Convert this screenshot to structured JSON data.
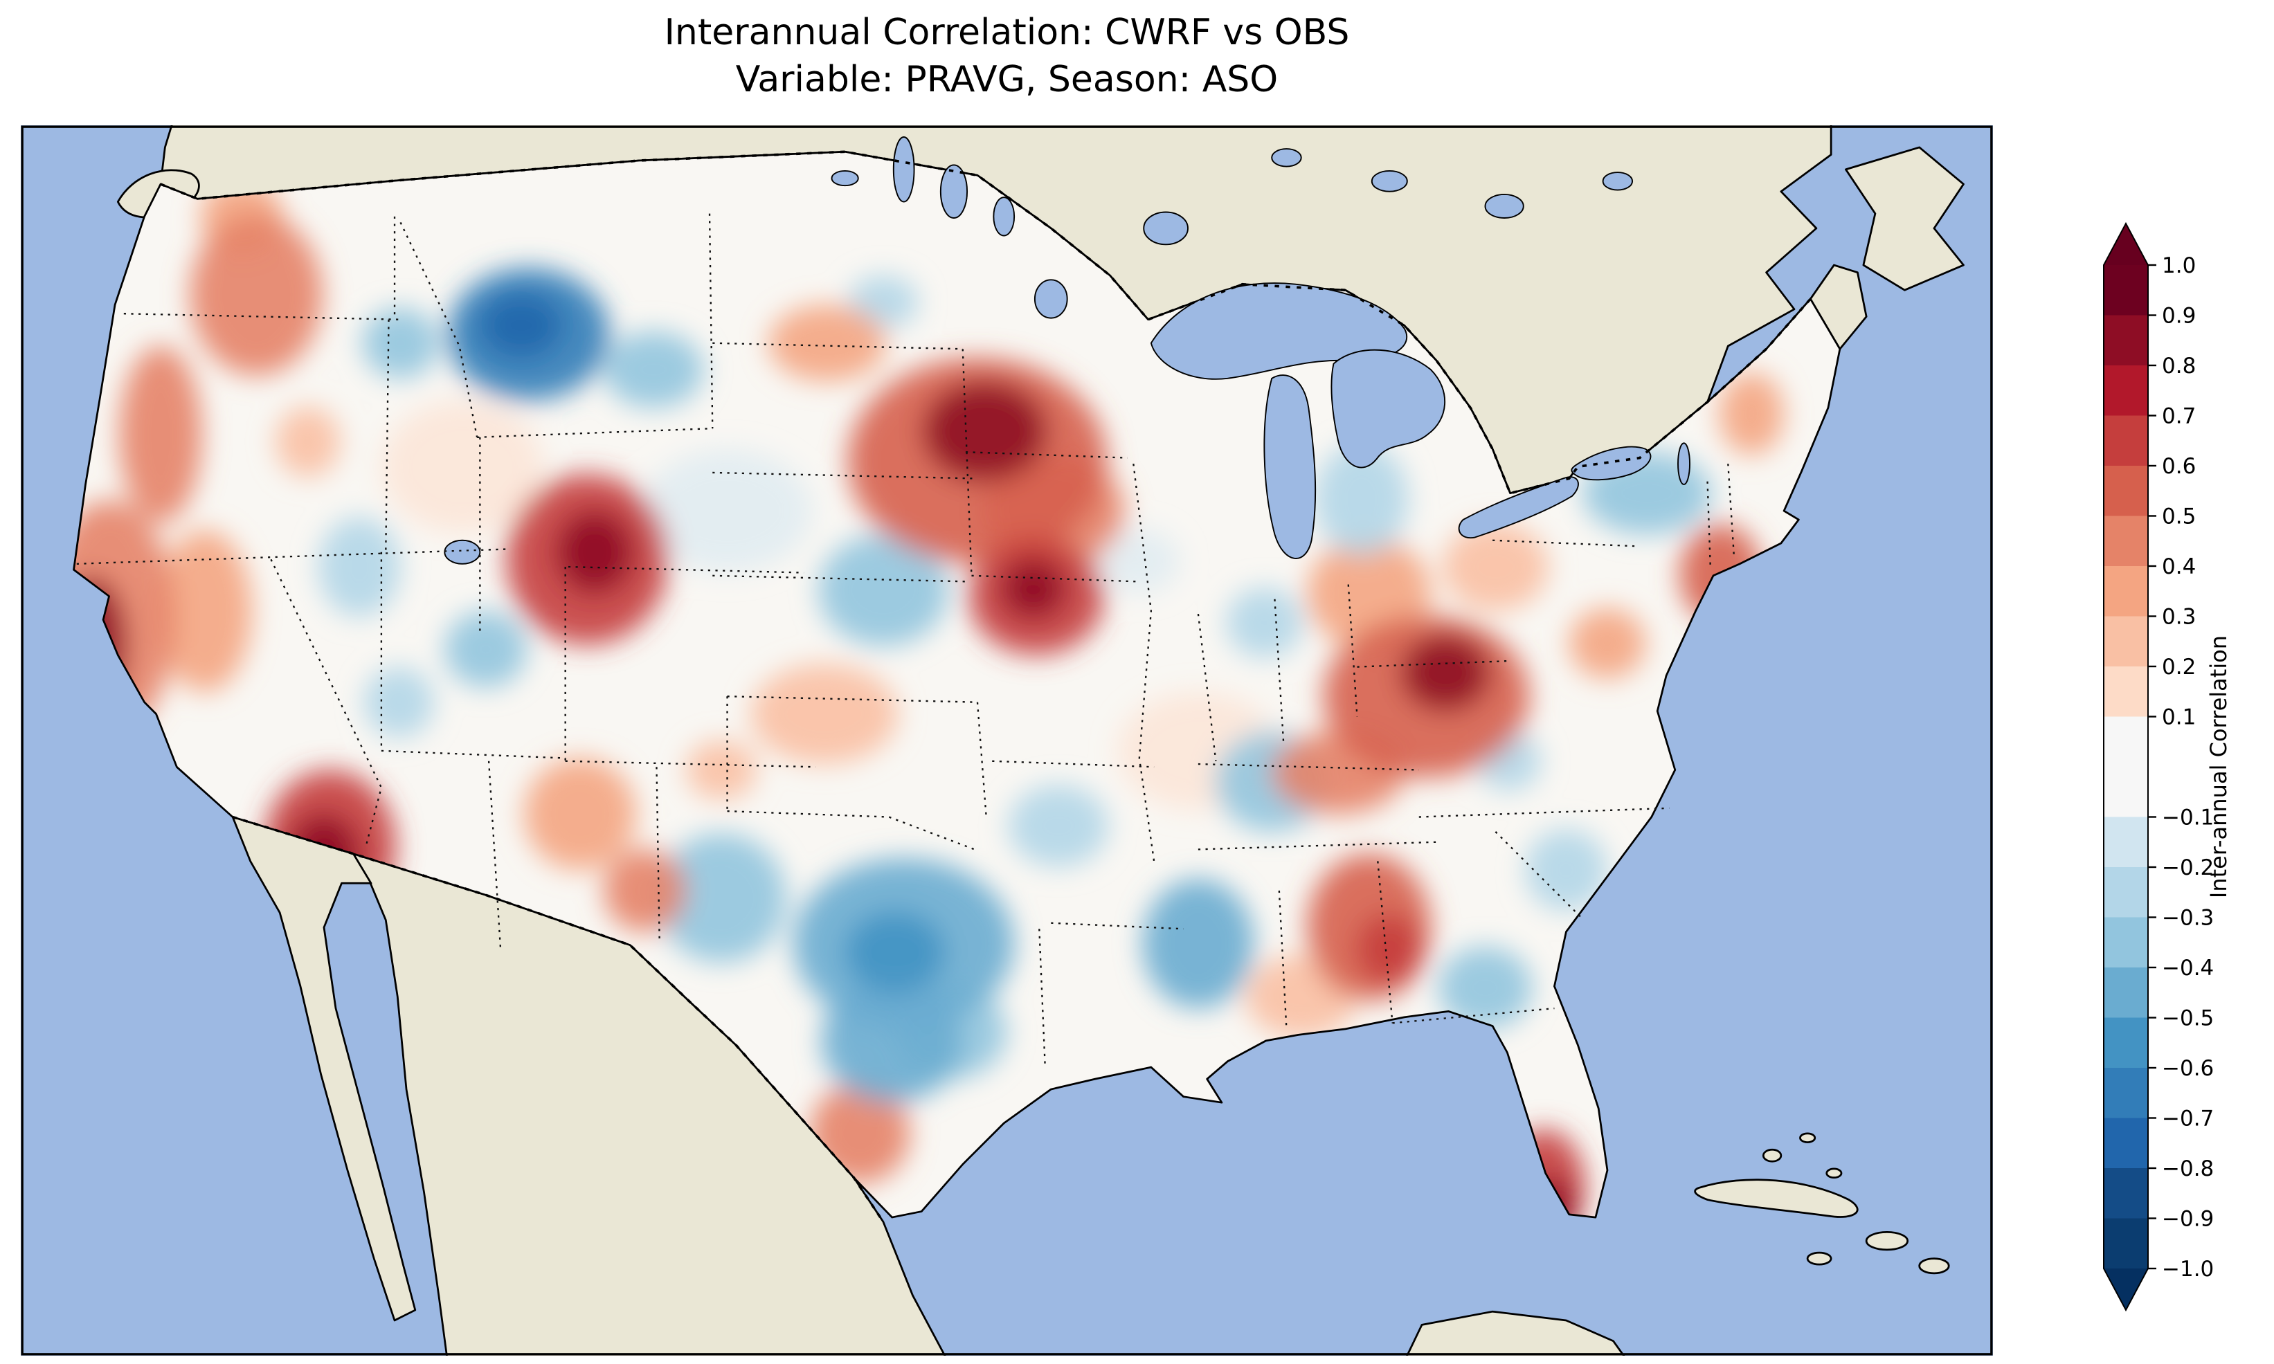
{
  "title": {
    "line1": "Interannual Correlation: CWRF vs OBS",
    "line2": "Variable: PRAVG, Season: ASO"
  },
  "colorbar": {
    "label": "Inter-annual Correlation",
    "over_color": "#67001f",
    "under_color": "#053061",
    "bands": [
      {
        "from": 0.9,
        "to": 1.0,
        "color": "#6d0120"
      },
      {
        "from": 0.8,
        "to": 0.9,
        "color": "#8e0d25"
      },
      {
        "from": 0.7,
        "to": 0.8,
        "color": "#b2182b"
      },
      {
        "from": 0.6,
        "to": 0.7,
        "color": "#c53e3d"
      },
      {
        "from": 0.5,
        "to": 0.6,
        "color": "#d6604d"
      },
      {
        "from": 0.4,
        "to": 0.5,
        "color": "#e58368"
      },
      {
        "from": 0.3,
        "to": 0.4,
        "color": "#f4a582"
      },
      {
        "from": 0.2,
        "to": 0.3,
        "color": "#f9c0a4"
      },
      {
        "from": 0.1,
        "to": 0.2,
        "color": "#fddbc7"
      },
      {
        "from": -0.1,
        "to": 0.1,
        "color": "#f7f7f7"
      },
      {
        "from": -0.2,
        "to": -0.1,
        "color": "#d1e5f0"
      },
      {
        "from": -0.3,
        "to": -0.2,
        "color": "#b3d6e8"
      },
      {
        "from": -0.4,
        "to": -0.3,
        "color": "#92c5de"
      },
      {
        "from": -0.5,
        "to": -0.4,
        "color": "#6aacd0"
      },
      {
        "from": -0.6,
        "to": -0.5,
        "color": "#4393c3"
      },
      {
        "from": -0.7,
        "to": -0.6,
        "color": "#327db8"
      },
      {
        "from": -0.8,
        "to": -0.7,
        "color": "#2166ac"
      },
      {
        "from": -0.9,
        "to": -0.8,
        "color": "#144c87"
      },
      {
        "from": -1.0,
        "to": -0.9,
        "color": "#0b3d70"
      }
    ],
    "tick_values": [
      1.0,
      0.9,
      0.8,
      0.7,
      0.6,
      0.5,
      0.4,
      0.3,
      0.2,
      0.1,
      -0.1,
      -0.2,
      -0.3,
      -0.4,
      -0.5,
      -0.6,
      -0.7,
      -0.8,
      -0.9,
      -1.0
    ],
    "tick_labels": [
      "1.0",
      "0.9",
      "0.8",
      "0.7",
      "0.6",
      "0.5",
      "0.4",
      "0.3",
      "0.2",
      "0.1",
      "−0.1",
      "−0.2",
      "−0.3",
      "−0.4",
      "−0.5",
      "−0.6",
      "−0.7",
      "−0.8",
      "−0.9",
      "−1.0"
    ]
  },
  "map": {
    "ocean_color": "#9db9e3",
    "land_color": "#eae7d5",
    "us_fill": "#f9f7f3",
    "coast_color": "#000000",
    "blobs": [
      [
        160,
        115,
        45,
        55,
        0.45
      ],
      [
        150,
        62,
        28,
        26,
        0.35
      ],
      [
        95,
        210,
        28,
        60,
        0.45
      ],
      [
        60,
        335,
        45,
        80,
        0.45
      ],
      [
        48,
        352,
        24,
        45,
        0.85
      ],
      [
        125,
        330,
        32,
        55,
        0.35
      ],
      [
        210,
        490,
        45,
        52,
        0.65
      ],
      [
        206,
        496,
        24,
        28,
        0.85
      ],
      [
        385,
        295,
        55,
        58,
        0.65
      ],
      [
        390,
        290,
        26,
        28,
        0.85
      ],
      [
        380,
        468,
        38,
        38,
        0.35
      ],
      [
        424,
        520,
        28,
        28,
        0.45
      ],
      [
        546,
        400,
        50,
        34,
        0.25
      ],
      [
        650,
        228,
        88,
        70,
        0.5
      ],
      [
        655,
        208,
        42,
        34,
        0.8
      ],
      [
        702,
        262,
        48,
        38,
        0.45
      ],
      [
        548,
        148,
        40,
        26,
        0.35
      ],
      [
        690,
        320,
        46,
        40,
        0.65
      ],
      [
        688,
        315,
        22,
        20,
        0.8
      ],
      [
        916,
        318,
        42,
        38,
        0.3
      ],
      [
        955,
        388,
        70,
        55,
        0.5
      ],
      [
        968,
        372,
        30,
        26,
        0.8
      ],
      [
        895,
        440,
        45,
        28,
        0.45
      ],
      [
        916,
        545,
        42,
        50,
        0.5
      ],
      [
        930,
        560,
        22,
        24,
        0.65
      ],
      [
        1035,
        722,
        28,
        40,
        0.65
      ],
      [
        1040,
        735,
        16,
        20,
        0.8
      ],
      [
        1155,
        305,
        28,
        34,
        0.55
      ],
      [
        1176,
        196,
        22,
        28,
        0.35
      ],
      [
        1078,
        352,
        26,
        24,
        0.35
      ],
      [
        570,
        685,
        34,
        34,
        0.45
      ],
      [
        195,
        215,
        22,
        24,
        0.25
      ],
      [
        476,
        438,
        24,
        20,
        0.25
      ],
      [
        870,
        592,
        38,
        28,
        0.25
      ],
      [
        1002,
        300,
        36,
        30,
        0.25
      ],
      [
        300,
        232,
        55,
        45,
        0.15
      ],
      [
        800,
        425,
        55,
        40,
        0.15
      ],
      [
        345,
        142,
        55,
        45,
        -0.65
      ],
      [
        340,
        136,
        28,
        22,
        -0.8
      ],
      [
        258,
        148,
        26,
        24,
        -0.35
      ],
      [
        430,
        166,
        34,
        26,
        -0.35
      ],
      [
        316,
        356,
        28,
        26,
        -0.35
      ],
      [
        230,
        300,
        28,
        34,
        -0.25
      ],
      [
        257,
        392,
        24,
        24,
        -0.25
      ],
      [
        476,
        525,
        44,
        44,
        -0.35
      ],
      [
        600,
        556,
        75,
        58,
        -0.45
      ],
      [
        594,
        562,
        34,
        28,
        -0.6
      ],
      [
        592,
        622,
        48,
        42,
        -0.45
      ],
      [
        632,
        616,
        38,
        32,
        -0.4
      ],
      [
        586,
        316,
        44,
        38,
        -0.35
      ],
      [
        705,
        476,
        34,
        28,
        -0.25
      ],
      [
        800,
        556,
        38,
        44,
        -0.45
      ],
      [
        850,
        446,
        38,
        34,
        -0.4
      ],
      [
        995,
        586,
        32,
        28,
        -0.35
      ],
      [
        1050,
        506,
        28,
        28,
        -0.3
      ],
      [
        1105,
        250,
        44,
        28,
        -0.4
      ],
      [
        911,
        254,
        32,
        38,
        -0.3
      ],
      [
        845,
        338,
        26,
        24,
        -0.25
      ],
      [
        586,
        120,
        24,
        18,
        -0.25
      ],
      [
        760,
        296,
        28,
        22,
        -0.2
      ],
      [
        1011,
        432,
        22,
        20,
        -0.25
      ],
      [
        480,
        262,
        58,
        42,
        -0.15
      ]
    ]
  },
  "chart_data": {
    "type": "heatmap",
    "title": "Interannual Correlation: CWRF vs OBS",
    "subtitle": "Variable: PRAVG, Season: ASO",
    "comparison": "CWRF vs OBS",
    "variable": "PRAVG",
    "season": "ASO",
    "colorbar_label": "Inter-annual Correlation",
    "colormap": "RdBu reversed (red = positive correlation, blue = negative correlation)",
    "value_range": [
      -1.0,
      1.0
    ],
    "contour_levels": [
      -1.0,
      -0.9,
      -0.8,
      -0.7,
      -0.6,
      -0.5,
      -0.4,
      -0.3,
      -0.2,
      -0.1,
      0.1,
      0.2,
      0.3,
      0.4,
      0.5,
      0.6,
      0.7,
      0.8,
      0.9,
      1.0
    ],
    "region": "Contiguous United States (with surrounding S. Canada and N. Mexico shown as neutral land)",
    "projection": "Lambert Conformal (approx.)",
    "notable_features": [
      {
        "region": "Washington / Pacific Northwest interior",
        "value": 0.5
      },
      {
        "region": "NW Wyoming – SW Montana",
        "value": -0.7
      },
      {
        "region": "Northern California coast",
        "value": 0.8
      },
      {
        "region": "Southern California / W. Arizona border",
        "value": 0.7
      },
      {
        "region": "Eastern Utah / W. Colorado",
        "value": 0.7
      },
      {
        "region": "Minnesota / Iowa / SW Wisconsin",
        "value": 0.8
      },
      {
        "region": "Missouri / S. Illinois",
        "value": 0.7
      },
      {
        "region": "Eastern Montana",
        "value": -0.4
      },
      {
        "region": "Eastern Nebraska / Kansas",
        "value": -0.4
      },
      {
        "region": "Oklahoma / North Texas",
        "value": -0.6
      },
      {
        "region": "Central Texas",
        "value": -0.5
      },
      {
        "region": "West Texas / SE New Mexico",
        "value": -0.4
      },
      {
        "region": "Louisiana / Mississippi",
        "value": -0.5
      },
      {
        "region": "Tennessee",
        "value": -0.4
      },
      {
        "region": "West Virginia / Appalachians",
        "value": 0.8
      },
      {
        "region": "Alabama / Georgia",
        "value": 0.6
      },
      {
        "region": "S. Georgia / N. Florida",
        "value": -0.4
      },
      {
        "region": "Southern Florida",
        "value": 0.7
      },
      {
        "region": "New Jersey / New York City coast",
        "value": 0.6
      },
      {
        "region": "Upstate New York / New England interior",
        "value": -0.4
      },
      {
        "region": "Michigan",
        "value": -0.3
      }
    ]
  }
}
